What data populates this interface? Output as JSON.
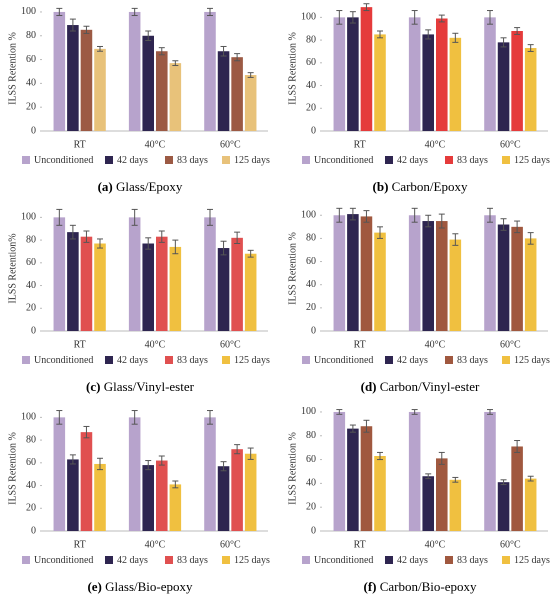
{
  "chart_data": [
    {
      "type": "bar",
      "label": "(a)",
      "caption": "Glass/Epoxy",
      "ylabel": "ILSS Retention %",
      "categories": [
        "RT",
        "40°C",
        "60°C"
      ],
      "ylim": [
        0,
        105
      ],
      "yticks": [
        0,
        20,
        40,
        60,
        80,
        100
      ],
      "series": [
        {
          "name": "Unconditioned",
          "color": "#b7a3cc",
          "values": [
            100,
            100,
            100
          ],
          "errors": [
            3,
            3,
            3
          ]
        },
        {
          "name": "42 days",
          "color": "#2e2550",
          "values": [
            89,
            80,
            67
          ],
          "errors": [
            5,
            4,
            4
          ]
        },
        {
          "name": "83 days",
          "color": "#9c5a44",
          "values": [
            85,
            67,
            62
          ],
          "errors": [
            3,
            3,
            3
          ]
        },
        {
          "name": "125 days",
          "color": "#e8c27a",
          "values": [
            69,
            57,
            47
          ],
          "errors": [
            2,
            2,
            2
          ]
        }
      ]
    },
    {
      "type": "bar",
      "label": "(b)",
      "caption": "Carbon/Epoxy",
      "ylabel": "ILSS Retention %",
      "categories": [
        "RT",
        "40°C",
        "60°C"
      ],
      "ylim": [
        0,
        110
      ],
      "yticks": [
        0,
        20,
        40,
        60,
        80,
        100
      ],
      "series": [
        {
          "name": "Unconditioned",
          "color": "#b7a3cc",
          "values": [
            100,
            100,
            100
          ],
          "errors": [
            6,
            6,
            6
          ]
        },
        {
          "name": "42 days",
          "color": "#2e2550",
          "values": [
            100,
            85,
            78
          ],
          "errors": [
            5,
            4,
            4
          ]
        },
        {
          "name": "83 days",
          "color": "#e53b3b",
          "values": [
            109,
            99,
            88
          ],
          "errors": [
            3,
            3,
            3
          ]
        },
        {
          "name": "125 days",
          "color": "#f0c040",
          "values": [
            85,
            82,
            73
          ],
          "errors": [
            3,
            4,
            3
          ]
        }
      ]
    },
    {
      "type": "bar",
      "label": "(c)",
      "caption": "Glass/Vinyl-ester",
      "ylabel": "ILSS Retention%",
      "categories": [
        "RT",
        "40°C",
        "60°C"
      ],
      "ylim": [
        0,
        110
      ],
      "yticks": [
        0,
        20,
        40,
        60,
        80,
        100
      ],
      "series": [
        {
          "name": "Unconditioned",
          "color": "#b7a3cc",
          "values": [
            100,
            100,
            100
          ],
          "errors": [
            7,
            7,
            7
          ]
        },
        {
          "name": "42 days",
          "color": "#2e2550",
          "values": [
            87,
            77,
            73
          ],
          "errors": [
            6,
            5,
            6
          ]
        },
        {
          "name": "83 days",
          "color": "#e05050",
          "values": [
            83,
            83,
            82
          ],
          "errors": [
            5,
            5,
            5
          ]
        },
        {
          "name": "125 days",
          "color": "#f0c040",
          "values": [
            77,
            74,
            68
          ],
          "errors": [
            4,
            6,
            3
          ]
        }
      ]
    },
    {
      "type": "bar",
      "label": "(d)",
      "caption": "Carbon/Vinyl-ester",
      "ylabel": "ILSS Retention %",
      "categories": [
        "RT",
        "40°C",
        "60°C"
      ],
      "ylim": [
        0,
        108
      ],
      "yticks": [
        0,
        20,
        40,
        60,
        80,
        100
      ],
      "series": [
        {
          "name": "Unconditioned",
          "color": "#b7a3cc",
          "values": [
            100,
            100,
            100
          ],
          "errors": [
            6,
            6,
            6
          ]
        },
        {
          "name": "42 days",
          "color": "#2e2550",
          "values": [
            101,
            95,
            92
          ],
          "errors": [
            5,
            5,
            5
          ]
        },
        {
          "name": "83 days",
          "color": "#a0583f",
          "values": [
            99,
            95,
            90
          ],
          "errors": [
            5,
            6,
            5
          ]
        },
        {
          "name": "125 days",
          "color": "#f0c040",
          "values": [
            85,
            79,
            80
          ],
          "errors": [
            5,
            5,
            5
          ]
        }
      ]
    },
    {
      "type": "bar",
      "label": "(e)",
      "caption": "Glass/Bio-epoxy",
      "ylabel": "ILSS Retention %",
      "categories": [
        "RT",
        "40°C",
        "60°C"
      ],
      "ylim": [
        0,
        110
      ],
      "yticks": [
        0,
        20,
        40,
        60,
        80,
        100
      ],
      "series": [
        {
          "name": "Unconditioned",
          "color": "#b7a3cc",
          "values": [
            100,
            100,
            100
          ],
          "errors": [
            6,
            6,
            6
          ]
        },
        {
          "name": "42 days",
          "color": "#2e2550",
          "values": [
            63,
            58,
            57
          ],
          "errors": [
            4,
            4,
            4
          ]
        },
        {
          "name": "83 days",
          "color": "#e05050",
          "values": [
            87,
            62,
            72
          ],
          "errors": [
            5,
            4,
            4
          ]
        },
        {
          "name": "125 days",
          "color": "#f0c040",
          "values": [
            59,
            41,
            68
          ],
          "errors": [
            5,
            3,
            5
          ]
        }
      ]
    },
    {
      "type": "bar",
      "label": "(f)",
      "caption": "Carbon/Bio-epoxy",
      "ylabel": "ILSS Retention %",
      "categories": [
        "RT",
        "40°C",
        "60°C"
      ],
      "ylim": [
        0,
        105
      ],
      "yticks": [
        0,
        20,
        40,
        60,
        80,
        100
      ],
      "series": [
        {
          "name": "Unconditioned",
          "color": "#b7a3cc",
          "values": [
            100,
            100,
            100
          ],
          "errors": [
            2,
            2,
            2
          ]
        },
        {
          "name": "42 days",
          "color": "#2e2550",
          "values": [
            86,
            46,
            41
          ],
          "errors": [
            3,
            2,
            2
          ]
        },
        {
          "name": "83 days",
          "color": "#a0583f",
          "values": [
            88,
            61,
            71
          ],
          "errors": [
            5,
            5,
            5
          ]
        },
        {
          "name": "125 days",
          "color": "#f0c040",
          "values": [
            63,
            43,
            44
          ],
          "errors": [
            3,
            2,
            2
          ]
        }
      ]
    }
  ]
}
